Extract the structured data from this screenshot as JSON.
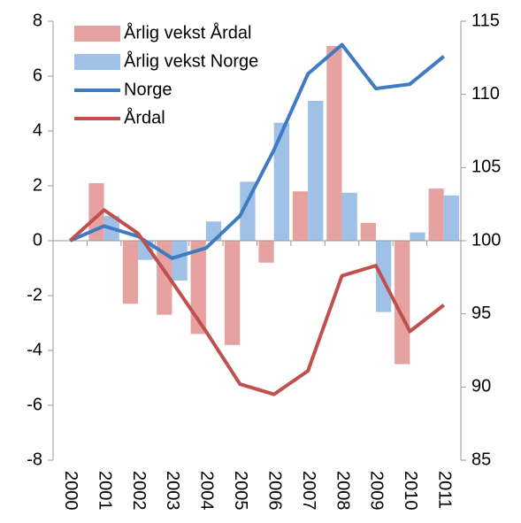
{
  "chart_data": {
    "type": "bar_line",
    "categories": [
      "2000",
      "2001",
      "2002",
      "2003",
      "2004",
      "2005",
      "2006",
      "2007",
      "2008",
      "2009",
      "2010",
      "2011"
    ],
    "series": [
      {
        "name": "Årlig vekst Årdal",
        "type": "bar",
        "color": "#e6a2a0",
        "values": [
          0,
          2.1,
          -2.3,
          -2.7,
          -3.4,
          -3.8,
          -0.8,
          1.8,
          7.1,
          0.65,
          -4.5,
          1.9
        ]
      },
      {
        "name": "Årlig vekst Norge",
        "type": "bar",
        "color": "#9fc1e8",
        "values": [
          0,
          0.9,
          -0.7,
          -1.45,
          0.7,
          2.15,
          4.3,
          5.1,
          1.75,
          -2.6,
          0.3,
          1.65
        ]
      },
      {
        "name": "Norge",
        "type": "line",
        "axis": "y2",
        "color": "#3e7bc1",
        "values": [
          100,
          101,
          100.3,
          98.8,
          99.5,
          101.7,
          106.2,
          111.4,
          113.4,
          110.4,
          110.7,
          112.6
        ]
      },
      {
        "name": "Årdal",
        "type": "line",
        "axis": "y2",
        "color": "#c0504d",
        "values": [
          100,
          102.1,
          100.5,
          97.2,
          93.8,
          90.2,
          89.5,
          91.1,
          97.6,
          98.3,
          93.8,
          95.6
        ]
      }
    ],
    "ylim": [
      -8,
      8
    ],
    "yticks": [
      -8,
      -6,
      -4,
      -2,
      0,
      2,
      4,
      6,
      8
    ],
    "y2lim": [
      85,
      115
    ],
    "y2ticks": [
      85,
      90,
      95,
      100,
      105,
      110,
      115
    ],
    "legend": "upper left"
  }
}
